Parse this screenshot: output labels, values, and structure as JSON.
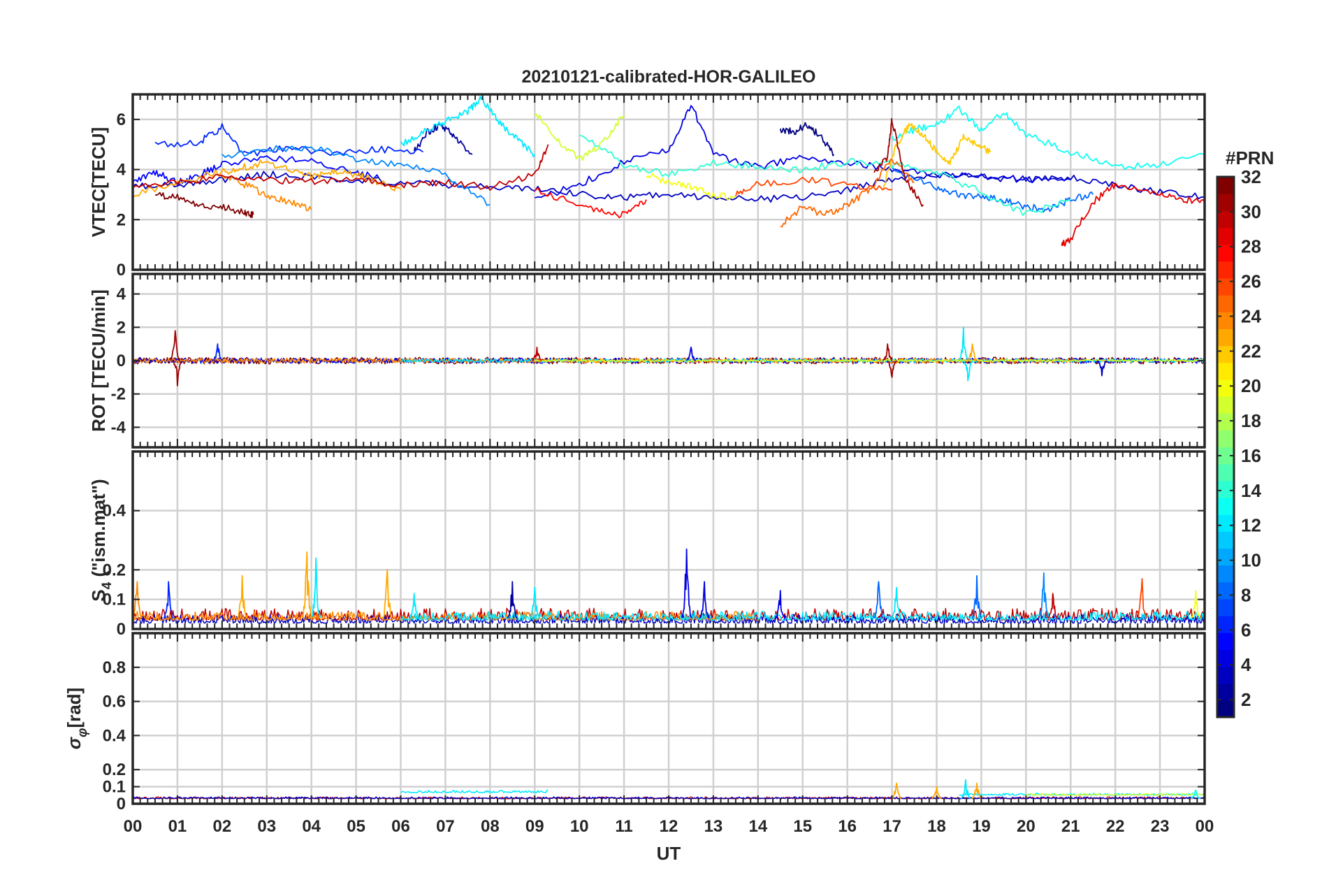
{
  "chart_data": {
    "type": "line",
    "title": "20210121-calibrated-HOR-GALILEO",
    "xlabel": "UT",
    "x_tick_labels": [
      "00",
      "01",
      "02",
      "03",
      "04",
      "05",
      "06",
      "07",
      "08",
      "09",
      "10",
      "11",
      "12",
      "13",
      "14",
      "15",
      "16",
      "17",
      "18",
      "19",
      "20",
      "21",
      "22",
      "23",
      "00"
    ],
    "xlim": [
      0,
      24
    ],
    "colorbar": {
      "label": "#PRN",
      "range": [
        1,
        32
      ],
      "tick_labels": [
        "2",
        "4",
        "6",
        "8",
        "10",
        "12",
        "14",
        "16",
        "18",
        "20",
        "22",
        "24",
        "26",
        "28",
        "30",
        "32"
      ],
      "colormap": "jet"
    },
    "panels": [
      {
        "id": "vtec",
        "ylabel": "VTEC[TECU]",
        "ylim": [
          0,
          7
        ],
        "y_ticks": [
          0,
          2,
          4,
          6
        ],
        "y_tick_labels": [
          "0",
          "2",
          "4",
          "6"
        ],
        "series": [
          {
            "prn": 1,
            "x": [
              14.5,
              14.8,
              15.1,
              15.4,
              15.7
            ],
            "y": [
              5.6,
              5.5,
              5.8,
              5.3,
              4.6
            ]
          },
          {
            "prn": 2,
            "x": [
              6.3,
              6.6,
              6.9,
              7.2,
              7.6
            ],
            "y": [
              4.7,
              5.5,
              5.8,
              5.3,
              4.6
            ]
          },
          {
            "prn": 3,
            "x": [
              0.0,
              1.0,
              2.0,
              3.0,
              4.0,
              5.0,
              6.0,
              7.0,
              8.0,
              9.0,
              10.0,
              11.0,
              12.0,
              13.0,
              14.0,
              15.0,
              16.0,
              17.0,
              18.0,
              19.0,
              20.0,
              21.0,
              22.0,
              23.0,
              24.0
            ],
            "y": [
              3.3,
              3.4,
              3.6,
              3.8,
              3.7,
              3.6,
              3.5,
              3.4,
              3.3,
              3.2,
              3.0,
              2.9,
              3.0,
              2.9,
              2.8,
              2.9,
              3.2,
              3.6,
              3.8,
              3.7,
              3.6,
              3.7,
              3.4,
              3.1,
              2.9
            ]
          },
          {
            "prn": 4,
            "x": [
              9.0,
              10.0,
              11.0,
              12.0,
              12.5,
              13.0,
              14.0,
              15.0,
              16.0,
              17.0,
              18.0,
              19.0,
              20.0,
              21.0
            ],
            "y": [
              2.8,
              3.4,
              4.3,
              4.8,
              6.6,
              4.6,
              4.1,
              4.5,
              4.3,
              4.0,
              3.8,
              3.7,
              3.6,
              3.6
            ]
          },
          {
            "prn": 5,
            "x": [
              0.0,
              0.5,
              1.0,
              1.5,
              2.0,
              3.0,
              4.0,
              5.0,
              5.5
            ],
            "y": [
              3.5,
              3.9,
              3.5,
              3.8,
              4.2,
              4.5,
              4.3,
              3.9,
              3.7
            ]
          },
          {
            "prn": 6,
            "x": [
              0.5,
              1.5,
              2.0,
              2.5,
              3.5,
              4.5,
              5.5,
              6.5
            ],
            "y": [
              5.0,
              5.1,
              5.7,
              4.6,
              4.9,
              4.6,
              4.8,
              4.7
            ]
          },
          {
            "prn": 8,
            "x": [
              17.0,
              18.0,
              18.5,
              19.0,
              19.5,
              20.0,
              20.5,
              21.0,
              21.5
            ],
            "y": [
              4.0,
              3.3,
              3.0,
              2.9,
              2.8,
              2.5,
              2.4,
              2.8,
              3.0
            ]
          },
          {
            "prn": 9,
            "x": [
              2.0,
              3.0,
              4.0,
              5.0,
              6.0,
              7.0,
              8.0
            ],
            "y": [
              4.5,
              4.8,
              4.9,
              4.4,
              4.2,
              3.8,
              2.6
            ]
          },
          {
            "prn": 12,
            "x": [
              6.0,
              6.5,
              7.0,
              7.5,
              7.8,
              8.2,
              8.6,
              9.0
            ],
            "y": [
              5.0,
              5.5,
              5.9,
              6.3,
              6.9,
              5.9,
              5.2,
              4.6
            ]
          },
          {
            "prn": 13,
            "x": [
              17.0,
              17.5,
              18.0,
              18.5,
              19.0,
              19.5,
              20.0,
              21.0,
              22.0,
              23.0,
              24.0
            ],
            "y": [
              5.2,
              5.6,
              5.8,
              6.4,
              5.6,
              6.3,
              5.4,
              4.7,
              4.1,
              4.2,
              4.6
            ]
          },
          {
            "prn": 14,
            "x": [
              10.0,
              11.0,
              12.0,
              13.0,
              14.0,
              15.0,
              16.0,
              17.0,
              18.0,
              19.0,
              20.0,
              21.0
            ],
            "y": [
              5.5,
              4.2,
              3.8,
              4.3,
              4.1,
              4.0,
              4.3,
              4.2,
              3.9,
              3.1,
              2.2,
              2.8
            ]
          },
          {
            "prn": 19,
            "x": [
              9.0,
              9.5,
              10.0,
              10.5,
              11.0
            ],
            "y": [
              6.3,
              5.2,
              4.4,
              5.0,
              6.2
            ]
          },
          {
            "prn": 20,
            "x": [
              11.5,
              12.0,
              12.5,
              13.0,
              13.5
            ],
            "y": [
              3.8,
              3.5,
              3.3,
              3.0,
              2.9
            ]
          },
          {
            "prn": 22,
            "x": [
              16.8,
              17.1,
              17.4,
              17.7,
              18.0,
              18.3,
              18.6,
              18.9,
              19.2
            ],
            "y": [
              3.3,
              5.0,
              5.8,
              5.4,
              4.7,
              4.3,
              5.3,
              5.0,
              4.7
            ]
          },
          {
            "prn": 23,
            "x": [
              0.0,
              1.0,
              2.0,
              2.5,
              3.0,
              3.5,
              4.0,
              4.5,
              5.0,
              5.5,
              6.0
            ],
            "y": [
              3.0,
              3.5,
              3.9,
              4.1,
              4.3,
              4.0,
              3.7,
              3.9,
              3.8,
              3.5,
              3.2
            ]
          },
          {
            "prn": 24,
            "x": [
              2.0,
              2.5,
              3.0,
              3.5,
              4.0
            ],
            "y": [
              3.8,
              3.4,
              3.0,
              2.7,
              2.4
            ]
          },
          {
            "prn": 25,
            "x": [
              14.5,
              15.0,
              15.5,
              16.0,
              16.5,
              17.0,
              17.5
            ],
            "y": [
              1.8,
              2.5,
              2.2,
              2.6,
              3.2,
              4.4,
              3.5
            ]
          },
          {
            "prn": 26,
            "x": [
              13.5,
              14.0,
              15.0,
              16.0,
              17.0
            ],
            "y": [
              3.0,
              3.4,
              3.6,
              3.4,
              3.2
            ]
          },
          {
            "prn": 28,
            "x": [
              9.0,
              10.0,
              10.5,
              11.0,
              11.5
            ],
            "y": [
              3.2,
              2.6,
              2.3,
              2.2,
              2.8
            ]
          },
          {
            "prn": 29,
            "x": [
              20.8,
              21.0,
              21.5,
              22.0,
              23.0,
              23.5,
              24.0
            ],
            "y": [
              1.0,
              1.2,
              2.7,
              3.4,
              3.0,
              2.8,
              2.7
            ]
          },
          {
            "prn": 30,
            "x": [
              0.0,
              1.0,
              2.0,
              3.0,
              4.0,
              5.0,
              6.0,
              7.0,
              8.0,
              9.0,
              9.3
            ],
            "y": [
              3.3,
              3.5,
              3.7,
              3.6,
              3.5,
              3.6,
              3.4,
              3.5,
              3.3,
              3.8,
              5.0
            ]
          },
          {
            "prn": 31,
            "x": [
              16.6,
              16.9,
              17.0,
              17.3,
              17.7
            ],
            "y": [
              3.9,
              4.5,
              6.0,
              3.6,
              2.6
            ]
          },
          {
            "prn": 32,
            "x": [
              0.5,
              1.0,
              1.5,
              2.0,
              2.5,
              2.7
            ],
            "y": [
              3.0,
              2.9,
              2.6,
              2.5,
              2.3,
              2.2
            ]
          }
        ]
      },
      {
        "id": "rot",
        "ylabel": "ROT [TECU/min]",
        "ylim": [
          -5.2,
          5.2
        ],
        "y_ticks": [
          -4,
          -2,
          0,
          2,
          4
        ],
        "y_tick_labels": [
          "-4",
          "-2",
          "0",
          "2",
          "4"
        ],
        "noise_bands": [
          {
            "prn": 32,
            "x0": 0.0,
            "x1": 24.0,
            "amp": 0.2
          },
          {
            "prn": 4,
            "x0": 0.0,
            "x1": 24.0,
            "amp": 0.16
          },
          {
            "prn": 24,
            "x0": 0.0,
            "x1": 21.0,
            "amp": 0.14
          },
          {
            "prn": 12,
            "x0": 6.0,
            "x1": 24.0,
            "amp": 0.1
          },
          {
            "prn": 20,
            "x0": 9.0,
            "x1": 24.0,
            "amp": 0.06
          }
        ],
        "spikes": [
          {
            "prn": 31,
            "x": 0.95,
            "y": 1.8
          },
          {
            "prn": 31,
            "x": 1.0,
            "y": -1.5
          },
          {
            "prn": 6,
            "x": 1.9,
            "y": 1.0
          },
          {
            "prn": 30,
            "x": 9.05,
            "y": 0.8
          },
          {
            "prn": 4,
            "x": 12.5,
            "y": 0.8
          },
          {
            "prn": 31,
            "x": 16.9,
            "y": 1.0
          },
          {
            "prn": 31,
            "x": 17.0,
            "y": -1.0
          },
          {
            "prn": 12,
            "x": 18.6,
            "y": 2.0
          },
          {
            "prn": 12,
            "x": 18.7,
            "y": -1.2
          },
          {
            "prn": 23,
            "x": 18.8,
            "y": 1.0
          },
          {
            "prn": 3,
            "x": 21.7,
            "y": -0.9
          }
        ]
      },
      {
        "id": "s4",
        "ylabel": "S4 (\"ism.mat\")",
        "ylabel_main": "S",
        "ylabel_sub": "4",
        "ylabel_rest": " (\"ism.mat\")",
        "ylim": [
          0,
          0.6
        ],
        "y_ticks": [
          0,
          0.1,
          0.2,
          0.4
        ],
        "y_tick_labels": [
          "0",
          "0.1",
          "0.2",
          "0.4"
        ],
        "noise_bands": [
          {
            "prn": 30,
            "x0": 0.0,
            "x1": 24.0,
            "base": 0.03,
            "amp": 0.04
          },
          {
            "prn": 3,
            "x0": 0.0,
            "x1": 24.0,
            "base": 0.02,
            "amp": 0.03
          },
          {
            "prn": 24,
            "x0": 0.0,
            "x1": 14.0,
            "base": 0.03,
            "amp": 0.03
          },
          {
            "prn": 12,
            "x0": 6.0,
            "x1": 24.0,
            "base": 0.03,
            "amp": 0.03
          }
        ],
        "spikes": [
          {
            "prn": 6,
            "x": 0.8,
            "y": 0.16
          },
          {
            "prn": 24,
            "x": 0.1,
            "y": 0.16
          },
          {
            "prn": 23,
            "x": 2.45,
            "y": 0.18
          },
          {
            "prn": 23,
            "x": 3.9,
            "y": 0.26
          },
          {
            "prn": 12,
            "x": 4.1,
            "y": 0.24
          },
          {
            "prn": 23,
            "x": 5.7,
            "y": 0.2
          },
          {
            "prn": 12,
            "x": 6.3,
            "y": 0.12
          },
          {
            "prn": 2,
            "x": 8.5,
            "y": 0.16
          },
          {
            "prn": 12,
            "x": 9.0,
            "y": 0.14
          },
          {
            "prn": 4,
            "x": 12.4,
            "y": 0.27
          },
          {
            "prn": 4,
            "x": 12.8,
            "y": 0.16
          },
          {
            "prn": 4,
            "x": 14.5,
            "y": 0.13
          },
          {
            "prn": 8,
            "x": 16.7,
            "y": 0.16
          },
          {
            "prn": 12,
            "x": 17.1,
            "y": 0.14
          },
          {
            "prn": 8,
            "x": 18.9,
            "y": 0.18
          },
          {
            "prn": 9,
            "x": 20.4,
            "y": 0.19
          },
          {
            "prn": 30,
            "x": 20.6,
            "y": 0.12
          },
          {
            "prn": 26,
            "x": 22.6,
            "y": 0.17
          },
          {
            "prn": 20,
            "x": 23.8,
            "y": 0.13
          }
        ]
      },
      {
        "id": "sigma_phi",
        "ylabel": "σφ[rad]",
        "ylabel_main": "σ",
        "ylabel_sub": "φ",
        "ylabel_rest": "[rad]",
        "ylim": [
          0,
          1.0
        ],
        "y_ticks": [
          0,
          0.1,
          0.2,
          0.4,
          0.6,
          0.8
        ],
        "y_tick_labels": [
          "0",
          "0.1",
          "0.2",
          "0.4",
          "0.6",
          "0.8"
        ],
        "noise_bands": [
          {
            "prn": 30,
            "x0": 0.0,
            "x1": 24.0,
            "base": 0.03,
            "amp": 0.01
          },
          {
            "prn": 3,
            "x0": 0.0,
            "x1": 24.0,
            "base": 0.03,
            "amp": 0.01
          },
          {
            "prn": 12,
            "x0": 6.0,
            "x1": 9.3,
            "base": 0.065,
            "amp": 0.015
          },
          {
            "prn": 12,
            "x0": 18.5,
            "x1": 24.0,
            "base": 0.05,
            "amp": 0.012
          },
          {
            "prn": 19,
            "x0": 20.0,
            "x1": 24.0,
            "base": 0.05,
            "amp": 0.01
          }
        ],
        "spikes": [
          {
            "prn": 23,
            "x": 17.1,
            "y": 0.12
          },
          {
            "prn": 23,
            "x": 18.0,
            "y": 0.1
          },
          {
            "prn": 12,
            "x": 18.65,
            "y": 0.14
          },
          {
            "prn": 23,
            "x": 18.9,
            "y": 0.12
          },
          {
            "prn": 13,
            "x": 23.8,
            "y": 0.08
          }
        ]
      }
    ]
  }
}
